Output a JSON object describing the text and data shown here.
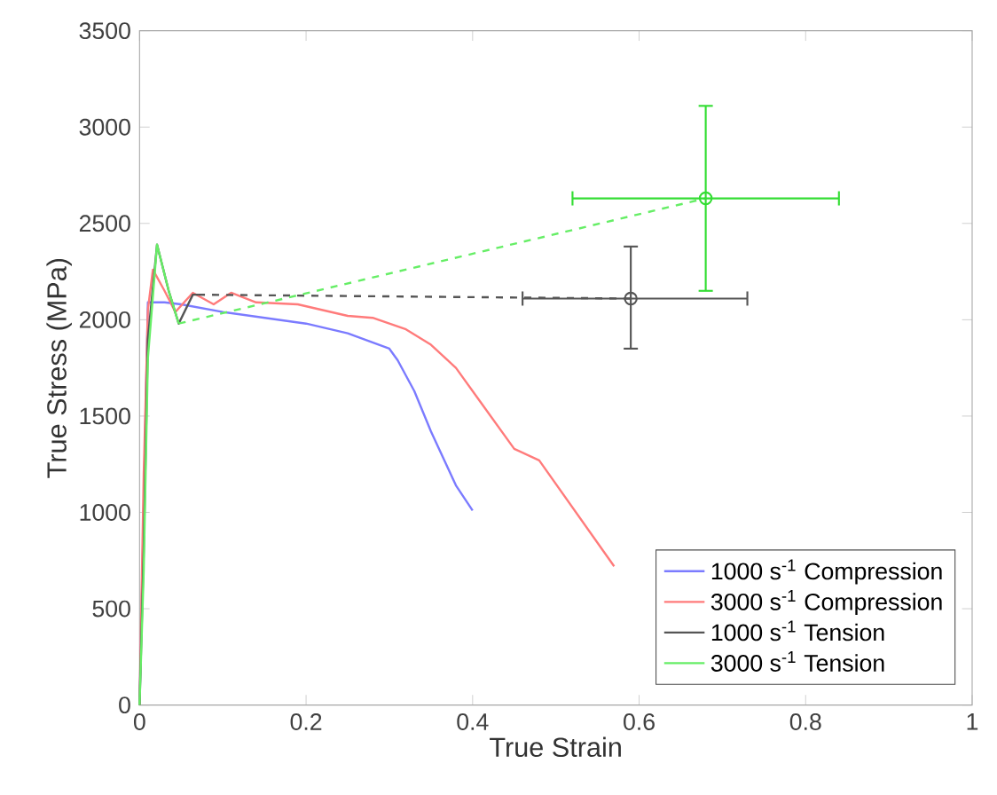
{
  "chart_data": {
    "type": "line",
    "xlabel": "True Strain",
    "ylabel": "True Stress (MPa)",
    "xlim": [
      0,
      1
    ],
    "ylim": [
      0,
      3500
    ],
    "xticks": [
      0,
      0.2,
      0.4,
      0.6,
      0.8,
      1
    ],
    "yticks": [
      0,
      500,
      1000,
      1500,
      2000,
      2500,
      3000,
      3500
    ],
    "legend": "bottom right",
    "series": [
      {
        "name": "1000 s$^{-1}$ Compression",
        "color": "#7b7bff",
        "line_style": "solid",
        "x": [
          0,
          0.005,
          0.01,
          0.03,
          0.05,
          0.1,
          0.15,
          0.2,
          0.25,
          0.3,
          0.31,
          0.33,
          0.35,
          0.38,
          0.4
        ],
        "values": [
          0,
          1000,
          2090,
          2090,
          2080,
          2040,
          2010,
          1980,
          1930,
          1850,
          1790,
          1630,
          1420,
          1140,
          1010
        ]
      },
      {
        "name": "3000 s$^{-1}$ Compression",
        "color": "#ff7b7b",
        "line_style": "solid",
        "x": [
          0,
          0.005,
          0.01,
          0.016,
          0.03,
          0.043,
          0.064,
          0.089,
          0.11,
          0.14,
          0.19,
          0.25,
          0.28,
          0.32,
          0.35,
          0.38,
          0.41,
          0.45,
          0.48,
          0.57
        ],
        "values": [
          0,
          1200,
          2050,
          2260,
          2150,
          2040,
          2140,
          2080,
          2140,
          2090,
          2080,
          2020,
          2010,
          1950,
          1870,
          1750,
          1570,
          1330,
          1270,
          720
        ]
      },
      {
        "name": "1000 s$^{-1}$ Tension",
        "color": "#555555",
        "line_style": "solid",
        "x": [
          0,
          0.005,
          0.01,
          0.021,
          0.035,
          0.047,
          0.064,
          0.07
        ],
        "values": [
          0,
          800,
          1900,
          2390,
          2150,
          1980,
          2130,
          2130
        ]
      },
      {
        "name": "3000 s$^{-1}$ Tension",
        "color": "#66ee66",
        "line_style": "solid",
        "x": [
          0,
          0.005,
          0.01,
          0.021,
          0.035,
          0.047
        ],
        "values": [
          0,
          700,
          1800,
          2390,
          2150,
          1980
        ]
      },
      {
        "color": "#555555",
        "line_style": "dashed",
        "x": [
          0.07,
          0.59
        ],
        "values": [
          2130,
          2110
        ]
      },
      {
        "color": "#66ee66",
        "line_style": "dashed",
        "x": [
          0.047,
          0.68
        ],
        "values": [
          1980,
          2630
        ]
      },
      {
        "type": "scatter",
        "color": "#555555",
        "marker": "circle",
        "x": [
          0.59
        ],
        "values": [
          2110
        ],
        "errors": [
          [
            1850,
            2380
          ]
        ],
        "xerrors": [
          [
            0.46,
            0.73
          ]
        ]
      },
      {
        "type": "scatter",
        "color": "#33dd33",
        "marker": "circle",
        "x": [
          0.68
        ],
        "values": [
          2630
        ],
        "errors": [
          [
            2150,
            3110
          ]
        ],
        "xerrors": [
          [
            0.52,
            0.84
          ]
        ]
      }
    ]
  }
}
